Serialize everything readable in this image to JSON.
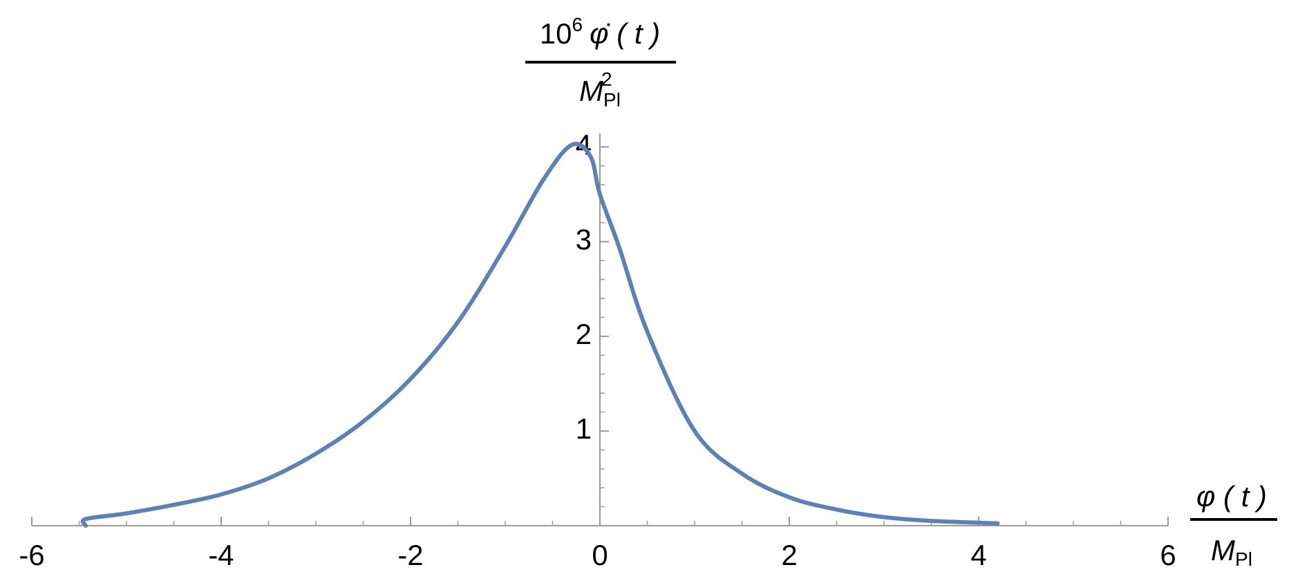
{
  "chart_data": {
    "type": "line",
    "xlabel": {
      "num": "φ ( t )",
      "den_base": "M",
      "den_sub": "Pl"
    },
    "ylabel": {
      "num_base": "10",
      "num_exp": "6",
      "num_rest": "φ̇ ( t )",
      "den_base": "M",
      "den_sub": "Pl",
      "den_sup": "2"
    },
    "x": [
      -5.43,
      -5.43,
      -5,
      -4.5,
      -4,
      -3.5,
      -3,
      -2.5,
      -2,
      -1.5,
      -1,
      -0.6,
      -0.3,
      -0.1,
      0,
      0.2,
      0.5,
      1,
      1.5,
      2,
      2.5,
      3,
      3.5,
      4.2
    ],
    "series": [
      {
        "color": "#5e81b5",
        "values": [
          0,
          0.07,
          0.13,
          0.22,
          0.33,
          0.5,
          0.76,
          1.1,
          1.55,
          2.15,
          2.95,
          3.65,
          4.02,
          3.9,
          3.5,
          2.95,
          2.05,
          1.0,
          0.55,
          0.3,
          0.17,
          0.09,
          0.05,
          0.025
        ]
      }
    ],
    "xlim": [
      -6,
      6
    ],
    "ylim": [
      0,
      4.1
    ],
    "xticks": [
      -6,
      -4,
      -2,
      0,
      2,
      4,
      6
    ],
    "yticks": [
      1,
      2,
      3,
      4
    ],
    "x_minor_step": 0.5,
    "y_minor_step": 0.2,
    "axis_color": "#999999"
  }
}
